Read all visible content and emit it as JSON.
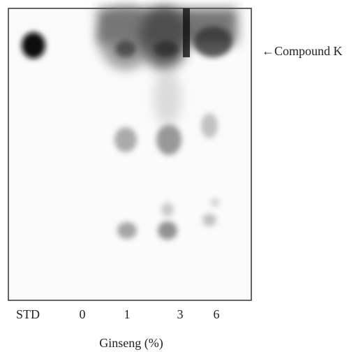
{
  "annotation": "←Compound K",
  "lanes": [
    "STD",
    "0",
    "1",
    "3",
    "6"
  ],
  "x_axis_label": "Ginseng (%)"
}
